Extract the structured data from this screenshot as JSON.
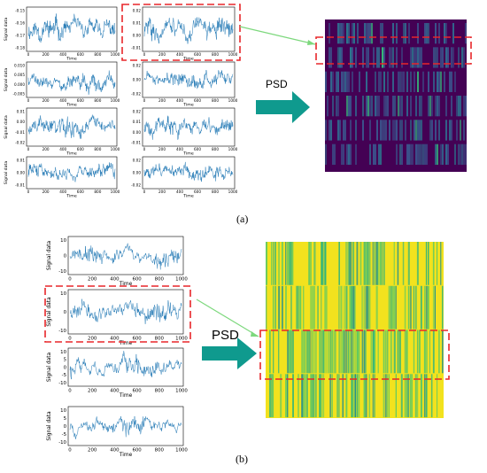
{
  "labels": {
    "panel_a": "(a)",
    "panel_b": "(b)",
    "arrow_a": "PSD",
    "arrow_b": "PSD"
  },
  "axis_text": {
    "xlabel": "Time",
    "ylabel": "Signal data"
  },
  "colors": {
    "signal": "#1f77b4",
    "highlight": "#e8262a",
    "arrow": "#0f9a8e",
    "connector": "#7dd87d",
    "heat_a_base": "#440154",
    "heat_a_mid": "#31688e",
    "heat_a_high": "#35b779",
    "heat_b_base": "#f2e21e",
    "heat_b_mid": "#21908c",
    "heat_b_high": "#5ec962"
  },
  "plots_a": [
    {
      "id": "a1",
      "yticks": [
        "-0.15",
        "-0.16",
        "-0.17",
        "-0.18"
      ],
      "xticks": [
        "0",
        "200",
        "400",
        "600",
        "800",
        "1000"
      ],
      "highlight": false
    },
    {
      "id": "a2",
      "yticks": [
        "0.02",
        "0.01",
        "0.00",
        "-0.01"
      ],
      "xticks": [
        "0",
        "200",
        "400",
        "600",
        "800",
        "1000"
      ],
      "highlight": true
    },
    {
      "id": "a3",
      "yticks": [
        "0.010",
        "0.005",
        "0.000",
        "-0.005"
      ],
      "xticks": [
        "0",
        "200",
        "400",
        "600",
        "800",
        "1000"
      ],
      "highlight": false
    },
    {
      "id": "a4",
      "yticks": [
        "0.02",
        "0.00",
        "-0.02"
      ],
      "xticks": [
        "0",
        "200",
        "400",
        "600",
        "800",
        "1000"
      ],
      "highlight": false
    },
    {
      "id": "a5",
      "yticks": [
        "0.01",
        "0.00",
        "-0.01",
        "-0.02"
      ],
      "xticks": [
        "0",
        "200",
        "400",
        "600",
        "800",
        "1000"
      ],
      "highlight": false
    },
    {
      "id": "a6",
      "yticks": [
        "0.02",
        "0.01",
        "0.00",
        "-0.01"
      ],
      "xticks": [
        "0",
        "200",
        "400",
        "600",
        "800",
        "1000"
      ],
      "highlight": false
    },
    {
      "id": "a7",
      "yticks": [
        "0.01",
        "0.00",
        "-0.01"
      ],
      "xticks": [
        "0",
        "200",
        "400",
        "600",
        "800",
        "1000"
      ],
      "highlight": false
    },
    {
      "id": "a8",
      "yticks": [
        "0.02",
        "0.00",
        "-0.02"
      ],
      "xticks": [
        "0",
        "200",
        "400",
        "600",
        "800",
        "1000"
      ],
      "highlight": false
    }
  ],
  "plots_b": [
    {
      "id": "b1",
      "yticks": [
        "10",
        "0",
        "-10"
      ],
      "xticks": [
        "0",
        "200",
        "400",
        "600",
        "800",
        "1000"
      ],
      "highlight": false
    },
    {
      "id": "b2",
      "yticks": [
        "10",
        "0",
        "-10"
      ],
      "xticks": [
        "0",
        "200",
        "400",
        "600",
        "800",
        "1000"
      ],
      "highlight": true
    },
    {
      "id": "b3",
      "yticks": [
        "10",
        "5",
        "0",
        "-5",
        "-10"
      ],
      "xticks": [
        "0",
        "200",
        "400",
        "600",
        "800",
        "1000"
      ],
      "highlight": false
    },
    {
      "id": "b4",
      "yticks": [
        "10",
        "5",
        "0",
        "-5",
        "-10"
      ],
      "xticks": [
        "0",
        "200",
        "400",
        "600",
        "800",
        "1000"
      ],
      "highlight": false
    }
  ]
}
